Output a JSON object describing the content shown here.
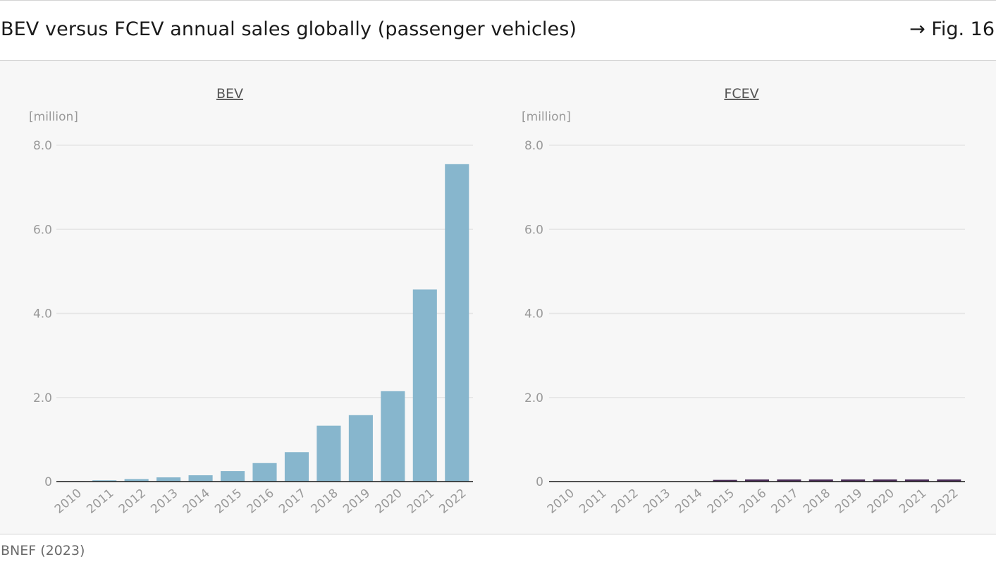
{
  "header": {
    "title": "BEV versus FCEV annual sales globally (passenger vehicles)",
    "figure_ref": "→ Fig. 16"
  },
  "footer": {
    "source": "BNEF (2023)"
  },
  "colors": {
    "bev": "#87b6cd",
    "fcev": "#4b2c59",
    "grid": "#e6e6e6",
    "axis": "#1a1a1a",
    "tick_label": "#9a9a9a",
    "panel_title": "#555555"
  },
  "chart_data": [
    {
      "type": "bar",
      "title": "BEV",
      "ylabel": "[million]",
      "xlabel": "",
      "ylim": [
        0,
        8
      ],
      "yticks": [
        0,
        2,
        4,
        6,
        8
      ],
      "ytick_labels": [
        "0",
        "2.0",
        "4.0",
        "6.0",
        "8.0"
      ],
      "grid": true,
      "categories": [
        "2010",
        "2011",
        "2012",
        "2013",
        "2014",
        "2015",
        "2016",
        "2017",
        "2018",
        "2019",
        "2020",
        "2021",
        "2022"
      ],
      "values": [
        0.01,
        0.03,
        0.06,
        0.1,
        0.15,
        0.25,
        0.44,
        0.7,
        1.33,
        1.58,
        2.15,
        4.57,
        7.55
      ]
    },
    {
      "type": "bar",
      "title": "FCEV",
      "ylabel": "[million]",
      "xlabel": "",
      "ylim": [
        0,
        8
      ],
      "yticks": [
        0,
        2,
        4,
        6,
        8
      ],
      "ytick_labels": [
        "0",
        "2.0",
        "4.0",
        "6.0",
        "8.0"
      ],
      "grid": true,
      "categories": [
        "2010",
        "2011",
        "2012",
        "2013",
        "2014",
        "2015",
        "2016",
        "2017",
        "2018",
        "2019",
        "2020",
        "2021",
        "2022"
      ],
      "values": [
        0.0,
        0.0,
        0.0,
        0.0,
        0.0,
        0.04,
        0.05,
        0.05,
        0.05,
        0.05,
        0.05,
        0.05,
        0.05
      ]
    }
  ]
}
